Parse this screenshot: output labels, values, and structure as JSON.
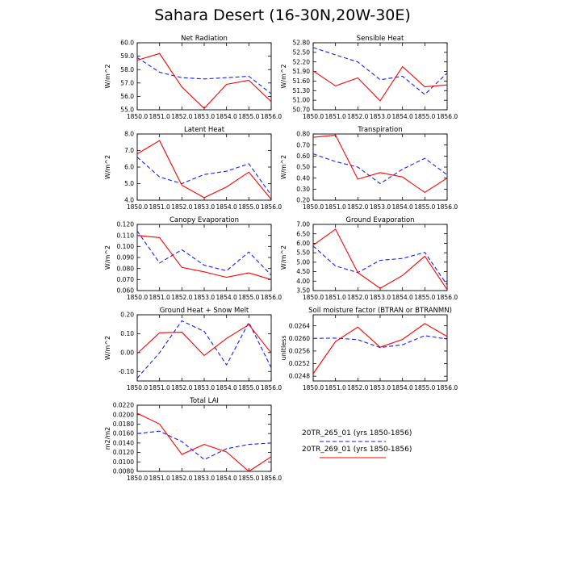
{
  "title": "Sahara Desert (16-30N,20W-30E)",
  "legend": [
    {
      "label": "20TR_265_01 (yrs 1850-1856)",
      "color": "#1a1aff",
      "dash": true
    },
    {
      "label": "20TR_269_01 (yrs 1850-1856)",
      "color": "#ff0000",
      "dash": false
    }
  ],
  "chart_data": [
    {
      "type": "line",
      "title": "Net Radiation",
      "ylabel": "W/m^2",
      "xlim": [
        1850.0,
        1856.0
      ],
      "ylim": [
        55.0,
        60.0
      ],
      "x": [
        1850,
        1851,
        1852,
        1853,
        1854,
        1855,
        1856
      ],
      "xticks": [
        "1850.0",
        "1851.0",
        "1852.0",
        "1853.0",
        "1854.0",
        "1855.0",
        "1856.0"
      ],
      "yticks": [
        {
          "v": 55.0,
          "label": "55.0"
        },
        {
          "v": 56.0,
          "label": "56.0"
        },
        {
          "v": 57.0,
          "label": "57.0"
        },
        {
          "v": 58.0,
          "label": "58.0"
        },
        {
          "v": 59.0,
          "label": "59.0"
        },
        {
          "v": 60.0,
          "label": "60.0"
        }
      ],
      "series": [
        {
          "name": "20TR_265_01",
          "values": [
            58.9,
            57.8,
            57.4,
            57.3,
            57.4,
            57.5,
            56.2
          ]
        },
        {
          "name": "20TR_269_01",
          "values": [
            58.7,
            59.2,
            56.7,
            55.1,
            56.9,
            57.2,
            55.6
          ]
        }
      ]
    },
    {
      "type": "line",
      "title": "Sensible Heat",
      "ylabel": "W/m^2",
      "xlim": [
        1850.0,
        1856.0
      ],
      "ylim": [
        50.7,
        52.8
      ],
      "x": [
        1850,
        1851,
        1852,
        1853,
        1854,
        1855,
        1856
      ],
      "xticks": [
        "1850.0",
        "1851.0",
        "1852.0",
        "1853.0",
        "1854.0",
        "1855.0",
        "1856.0"
      ],
      "yticks": [
        {
          "v": 50.7,
          "label": "50.70"
        },
        {
          "v": 51.0,
          "label": "51.00"
        },
        {
          "v": 51.3,
          "label": "51.30"
        },
        {
          "v": 51.6,
          "label": "51.60"
        },
        {
          "v": 51.9,
          "label": "51.90"
        },
        {
          "v": 52.2,
          "label": "52.20"
        },
        {
          "v": 52.5,
          "label": "52.50"
        },
        {
          "v": 52.8,
          "label": "52.80"
        }
      ],
      "series": [
        {
          "name": "20TR_265_01",
          "values": [
            52.65,
            52.42,
            52.2,
            51.64,
            51.75,
            51.18,
            51.85
          ]
        },
        {
          "name": "20TR_269_01",
          "values": [
            51.92,
            51.45,
            51.7,
            50.98,
            52.05,
            51.42,
            51.48
          ]
        }
      ]
    },
    {
      "type": "line",
      "title": "Latent Heat",
      "ylabel": "W/m^2",
      "xlim": [
        1850.0,
        1856.0
      ],
      "ylim": [
        4.0,
        8.0
      ],
      "x": [
        1850,
        1851,
        1852,
        1853,
        1854,
        1855,
        1856
      ],
      "xticks": [
        "1850.0",
        "1851.0",
        "1852.0",
        "1853.0",
        "1854.0",
        "1855.0",
        "1856.0"
      ],
      "yticks": [
        {
          "v": 4.0,
          "label": "4.0"
        },
        {
          "v": 5.0,
          "label": "5.0"
        },
        {
          "v": 6.0,
          "label": "6.0"
        },
        {
          "v": 7.0,
          "label": "7.0"
        },
        {
          "v": 8.0,
          "label": "8.0"
        }
      ],
      "series": [
        {
          "name": "20TR_265_01",
          "values": [
            6.6,
            5.4,
            5.0,
            5.55,
            5.75,
            6.2,
            4.3
          ]
        },
        {
          "name": "20TR_269_01",
          "values": [
            6.8,
            7.6,
            4.9,
            4.15,
            4.8,
            5.7,
            4.05
          ]
        }
      ]
    },
    {
      "type": "line",
      "title": "Transpiration",
      "ylabel": "W/m^2",
      "xlim": [
        1850.0,
        1856.0
      ],
      "ylim": [
        0.2,
        0.8
      ],
      "x": [
        1850,
        1851,
        1852,
        1853,
        1854,
        1855,
        1856
      ],
      "xticks": [
        "1850.0",
        "1851.0",
        "1852.0",
        "1853.0",
        "1854.0",
        "1855.0",
        "1856.0"
      ],
      "yticks": [
        {
          "v": 0.2,
          "label": "0.20"
        },
        {
          "v": 0.3,
          "label": "0.30"
        },
        {
          "v": 0.4,
          "label": "0.40"
        },
        {
          "v": 0.5,
          "label": "0.50"
        },
        {
          "v": 0.6,
          "label": "0.60"
        },
        {
          "v": 0.7,
          "label": "0.70"
        },
        {
          "v": 0.8,
          "label": "0.80"
        }
      ],
      "series": [
        {
          "name": "20TR_265_01",
          "values": [
            0.62,
            0.55,
            0.5,
            0.35,
            0.48,
            0.58,
            0.43
          ]
        },
        {
          "name": "20TR_269_01",
          "values": [
            0.77,
            0.79,
            0.39,
            0.45,
            0.41,
            0.27,
            0.4
          ]
        }
      ]
    },
    {
      "type": "line",
      "title": "Canopy Evaporation",
      "ylabel": "W/m^2",
      "xlim": [
        1850.0,
        1856.0
      ],
      "ylim": [
        0.06,
        0.12
      ],
      "x": [
        1850,
        1851,
        1852,
        1853,
        1854,
        1855,
        1856
      ],
      "xticks": [
        "1850.0",
        "1851.0",
        "1852.0",
        "1853.0",
        "1854.0",
        "1855.0",
        "1856.0"
      ],
      "yticks": [
        {
          "v": 0.06,
          "label": "0.060"
        },
        {
          "v": 0.07,
          "label": "0.070"
        },
        {
          "v": 0.08,
          "label": "0.080"
        },
        {
          "v": 0.09,
          "label": "0.090"
        },
        {
          "v": 0.1,
          "label": "0.100"
        },
        {
          "v": 0.11,
          "label": "0.110"
        },
        {
          "v": 0.12,
          "label": "0.120"
        }
      ],
      "series": [
        {
          "name": "20TR_265_01",
          "values": [
            0.114,
            0.085,
            0.097,
            0.083,
            0.078,
            0.095,
            0.074
          ]
        },
        {
          "name": "20TR_269_01",
          "values": [
            0.11,
            0.108,
            0.081,
            0.077,
            0.072,
            0.076,
            0.07
          ]
        }
      ]
    },
    {
      "type": "line",
      "title": "Ground Evaporation",
      "ylabel": "W/m^2",
      "xlim": [
        1850.0,
        1856.0
      ],
      "ylim": [
        3.5,
        7.0
      ],
      "x": [
        1850,
        1851,
        1852,
        1853,
        1854,
        1855,
        1856
      ],
      "xticks": [
        "1850.0",
        "1851.0",
        "1852.0",
        "1853.0",
        "1854.0",
        "1855.0",
        "1856.0"
      ],
      "yticks": [
        {
          "v": 3.5,
          "label": "3.50"
        },
        {
          "v": 4.0,
          "label": "4.00"
        },
        {
          "v": 4.5,
          "label": "4.50"
        },
        {
          "v": 5.0,
          "label": "5.00"
        },
        {
          "v": 5.5,
          "label": "5.50"
        },
        {
          "v": 6.0,
          "label": "6.00"
        },
        {
          "v": 6.5,
          "label": "6.50"
        },
        {
          "v": 7.0,
          "label": "7.00"
        }
      ],
      "series": [
        {
          "name": "20TR_265_01",
          "values": [
            5.85,
            4.8,
            4.45,
            5.1,
            5.2,
            5.52,
            3.8
          ]
        },
        {
          "name": "20TR_269_01",
          "values": [
            5.9,
            6.75,
            4.45,
            3.62,
            4.3,
            5.32,
            3.55
          ]
        }
      ]
    },
    {
      "type": "line",
      "title": "Ground Heat + Snow Melt",
      "ylabel": "W/m^2",
      "xlim": [
        1850.0,
        1856.0
      ],
      "ylim": [
        -0.15,
        0.2
      ],
      "x": [
        1850,
        1851,
        1852,
        1853,
        1854,
        1855,
        1856
      ],
      "xticks": [
        "1850.0",
        "1851.0",
        "1852.0",
        "1853.0",
        "1854.0",
        "1855.0",
        "1856.0"
      ],
      "yticks": [
        {
          "v": -0.1,
          "label": "-0.10"
        },
        {
          "v": 0.0,
          "label": "0.00"
        },
        {
          "v": 0.1,
          "label": "0.10"
        },
        {
          "v": 0.2,
          "label": "0.20"
        }
      ],
      "series": [
        {
          "name": "20TR_265_01",
          "values": [
            -0.135,
            0.0,
            0.168,
            0.112,
            -0.065,
            0.16,
            -0.08
          ]
        },
        {
          "name": "20TR_269_01",
          "values": [
            -0.005,
            0.105,
            0.108,
            -0.015,
            0.075,
            0.148,
            -0.002
          ]
        }
      ]
    },
    {
      "type": "line",
      "title": "Soil moisture factor (BTRAN or BTRANMN)",
      "ylabel": "unitless",
      "xlim": [
        1850.0,
        1856.0
      ],
      "ylim": [
        0.02465,
        0.02675
      ],
      "x": [
        1850,
        1851,
        1852,
        1853,
        1854,
        1855,
        1856
      ],
      "xticks": [
        "1850.0",
        "1851.0",
        "1852.0",
        "1853.0",
        "1854.0",
        "1855.0",
        "1856.0"
      ],
      "yticks": [
        {
          "v": 0.0248,
          "label": "0.0248"
        },
        {
          "v": 0.0252,
          "label": "0.0252"
        },
        {
          "v": 0.0256,
          "label": "0.0256"
        },
        {
          "v": 0.026,
          "label": "0.0260"
        },
        {
          "v": 0.0264,
          "label": "0.0264"
        }
      ],
      "series": [
        {
          "name": "20TR_265_01",
          "values": [
            0.026,
            0.02601,
            0.02596,
            0.02571,
            0.0258,
            0.02609,
            0.02598
          ]
        },
        {
          "name": "20TR_269_01",
          "values": [
            0.02488,
            0.0259,
            0.02636,
            0.02572,
            0.02597,
            0.02647,
            0.02606
          ]
        }
      ]
    },
    {
      "type": "line",
      "title": "Total LAI",
      "ylabel": "m2/m2",
      "xlim": [
        1850.0,
        1856.0
      ],
      "ylim": [
        0.008,
        0.022
      ],
      "x": [
        1850,
        1851,
        1852,
        1853,
        1854,
        1855,
        1856
      ],
      "xticks": [
        "1850.0",
        "1851.0",
        "1852.0",
        "1853.0",
        "1854.0",
        "1855.0",
        "1856.0"
      ],
      "yticks": [
        {
          "v": 0.008,
          "label": "0.0080"
        },
        {
          "v": 0.01,
          "label": "0.0100"
        },
        {
          "v": 0.012,
          "label": "0.0120"
        },
        {
          "v": 0.014,
          "label": "0.0140"
        },
        {
          "v": 0.016,
          "label": "0.0160"
        },
        {
          "v": 0.018,
          "label": "0.0180"
        },
        {
          "v": 0.02,
          "label": "0.0200"
        },
        {
          "v": 0.022,
          "label": "0.0220"
        }
      ],
      "series": [
        {
          "name": "20TR_265_01",
          "values": [
            0.016,
            0.0165,
            0.0143,
            0.0105,
            0.0128,
            0.0137,
            0.014
          ]
        },
        {
          "name": "20TR_269_01",
          "values": [
            0.0203,
            0.018,
            0.0116,
            0.0137,
            0.0121,
            0.008,
            0.0111
          ]
        }
      ]
    }
  ]
}
